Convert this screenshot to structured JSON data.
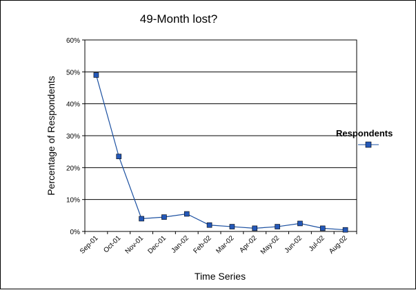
{
  "chart_data": {
    "type": "line",
    "title": "49-Month lost?",
    "xlabel": "Time Series",
    "ylabel": "Percentage of Respondents",
    "categories": [
      "Sep-01",
      "Oct-01",
      "Nov-01",
      "Dec-01",
      "Jan-02",
      "Feb-02",
      "Mar-02",
      "Apr-02",
      "May-02",
      "Jun-02",
      "Jul-02",
      "Aug-02"
    ],
    "series": [
      {
        "name": "Respondents",
        "values": [
          49,
          23.5,
          4,
          4.5,
          5.5,
          2,
          1.5,
          1,
          1.5,
          2.5,
          1,
          0.5
        ]
      }
    ],
    "ylim": [
      0,
      60
    ],
    "yticks": [
      "0%",
      "10%",
      "20%",
      "30%",
      "40%",
      "50%",
      "60%"
    ],
    "ytick_values": [
      0,
      10,
      20,
      30,
      40,
      50,
      60
    ],
    "grid": true,
    "legend_position": "right",
    "series_color": "#1a4fa0",
    "marker_color": "#2458b8"
  }
}
